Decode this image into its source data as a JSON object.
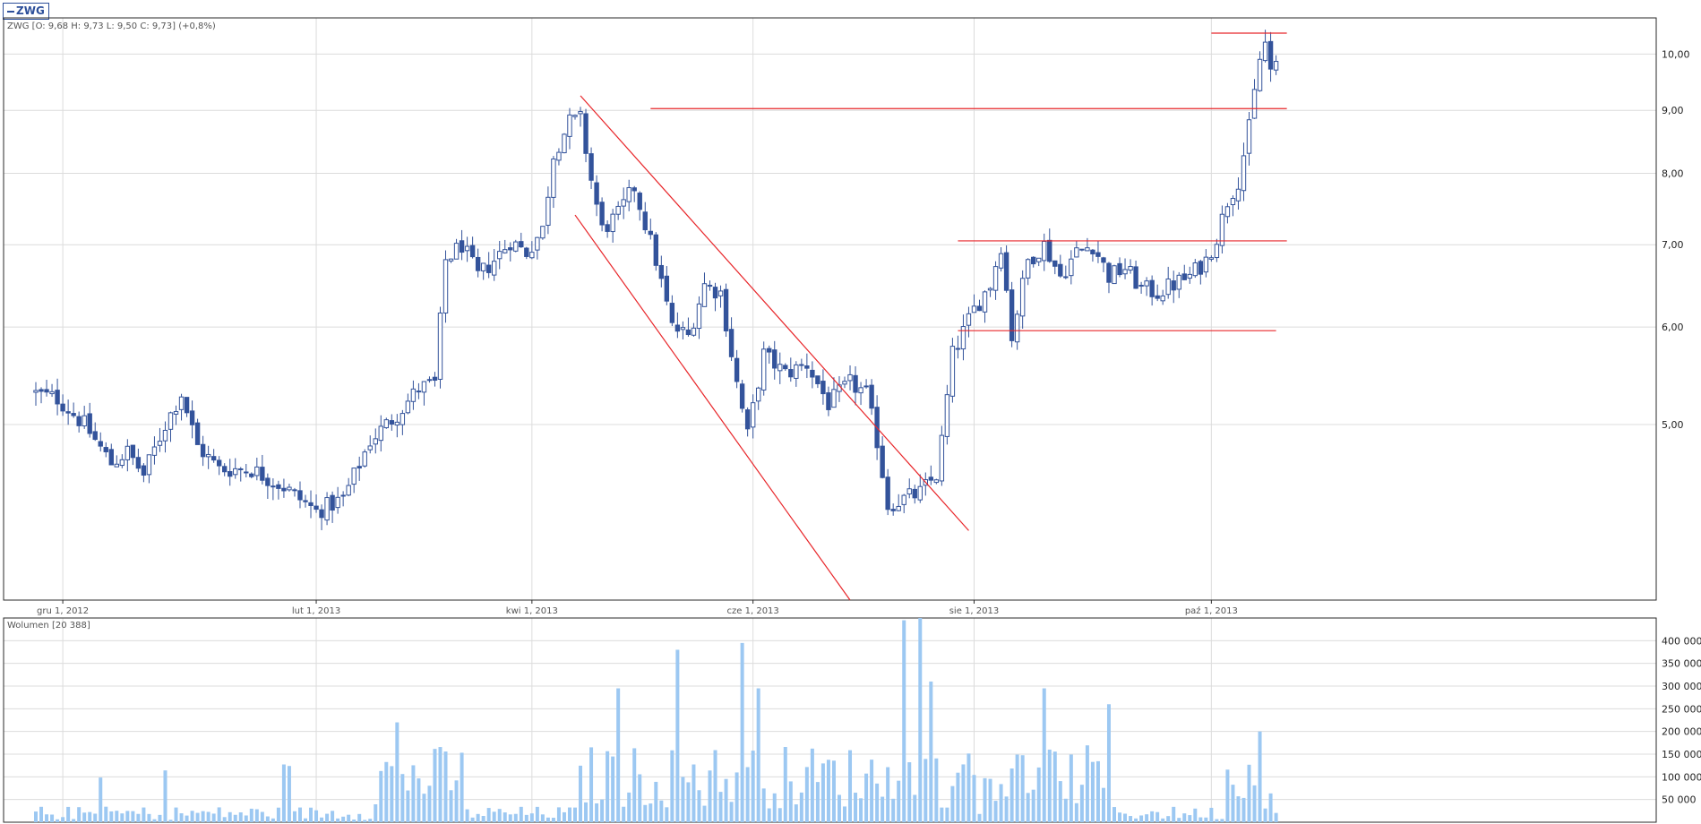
{
  "ticker_tag": "ZWG",
  "price_panel": {
    "legend": "ZWG [O: 9,68  H: 9,73  L: 9,50  C: 9,73] (+0,8%)"
  },
  "volume_panel": {
    "legend": "Wolumen [20 388]"
  },
  "colors": {
    "down_candle": "#33539b",
    "up_candle_border": "#33539b",
    "trend_lines": "#e8262a",
    "volume_bars": "#9cc8f2",
    "grid": "#dcdcdc"
  },
  "chart_data": [
    {
      "type": "candlestick",
      "title": "",
      "series_name": "ZWG",
      "x_ticks": [
        "gru 1, 2012",
        "lut 1, 2013",
        "kwi 1, 2013",
        "cze 1, 2013",
        "sie 1, 2013",
        "paź 1, 2013"
      ],
      "y_scale": "log",
      "y_ticks": [
        "5,00",
        "6,00",
        "7,00",
        "8,00",
        "9,00",
        "10,00"
      ],
      "ylim": [
        3.6,
        10.7
      ],
      "grid": true,
      "legend_position": "top-left",
      "close_path": [
        {
          "bar": 0,
          "close": 5.3
        },
        {
          "bar": 4,
          "close": 5.25
        },
        {
          "bar": 9,
          "close": 5.0
        },
        {
          "bar": 14,
          "close": 4.65
        },
        {
          "bar": 17,
          "close": 4.75
        },
        {
          "bar": 20,
          "close": 4.55
        },
        {
          "bar": 24,
          "close": 5.0
        },
        {
          "bar": 27,
          "close": 5.3
        },
        {
          "bar": 30,
          "close": 4.8
        },
        {
          "bar": 34,
          "close": 4.6
        },
        {
          "bar": 40,
          "close": 4.6
        },
        {
          "bar": 46,
          "close": 4.45
        },
        {
          "bar": 52,
          "close": 4.25
        },
        {
          "bar": 57,
          "close": 4.35
        },
        {
          "bar": 62,
          "close": 4.85
        },
        {
          "bar": 67,
          "close": 5.1
        },
        {
          "bar": 71,
          "close": 5.35
        },
        {
          "bar": 74,
          "close": 5.4
        },
        {
          "bar": 76,
          "close": 6.8
        },
        {
          "bar": 79,
          "close": 7.0
        },
        {
          "bar": 82,
          "close": 6.6
        },
        {
          "bar": 85,
          "close": 6.8
        },
        {
          "bar": 88,
          "close": 7.05
        },
        {
          "bar": 91,
          "close": 6.9
        },
        {
          "bar": 94,
          "close": 7.2
        },
        {
          "bar": 96,
          "close": 8.3
        },
        {
          "bar": 99,
          "close": 8.8
        },
        {
          "bar": 101,
          "close": 8.85
        },
        {
          "bar": 103,
          "close": 7.9
        },
        {
          "bar": 105,
          "close": 7.2
        },
        {
          "bar": 108,
          "close": 7.4
        },
        {
          "bar": 111,
          "close": 7.8
        },
        {
          "bar": 115,
          "close": 6.8
        },
        {
          "bar": 118,
          "close": 6.0
        },
        {
          "bar": 121,
          "close": 5.9
        },
        {
          "bar": 124,
          "close": 6.5
        },
        {
          "bar": 127,
          "close": 6.4
        },
        {
          "bar": 130,
          "close": 5.4
        },
        {
          "bar": 132,
          "close": 4.9
        },
        {
          "bar": 135,
          "close": 5.7
        },
        {
          "bar": 139,
          "close": 5.5
        },
        {
          "bar": 143,
          "close": 5.6
        },
        {
          "bar": 147,
          "close": 5.2
        },
        {
          "bar": 151,
          "close": 5.4
        },
        {
          "bar": 154,
          "close": 5.3
        },
        {
          "bar": 156,
          "close": 4.85
        },
        {
          "bar": 158,
          "close": 4.3
        },
        {
          "bar": 161,
          "close": 4.35
        },
        {
          "bar": 164,
          "close": 4.4
        },
        {
          "bar": 167,
          "close": 4.55
        },
        {
          "bar": 168,
          "close": 4.85
        },
        {
          "bar": 170,
          "close": 5.7
        },
        {
          "bar": 174,
          "close": 6.2
        },
        {
          "bar": 177,
          "close": 6.5
        },
        {
          "bar": 179,
          "close": 7.0
        },
        {
          "bar": 181,
          "close": 5.9
        },
        {
          "bar": 184,
          "close": 6.8
        },
        {
          "bar": 187,
          "close": 7.0
        },
        {
          "bar": 190,
          "close": 6.6
        },
        {
          "bar": 193,
          "close": 6.9
        },
        {
          "bar": 196,
          "close": 7.0
        },
        {
          "bar": 199,
          "close": 6.6
        },
        {
          "bar": 202,
          "close": 6.7
        },
        {
          "bar": 205,
          "close": 6.45
        },
        {
          "bar": 208,
          "close": 6.4
        },
        {
          "bar": 211,
          "close": 6.5
        },
        {
          "bar": 214,
          "close": 6.6
        },
        {
          "bar": 217,
          "close": 6.8
        },
        {
          "bar": 219,
          "close": 7.1
        },
        {
          "bar": 221,
          "close": 7.6
        },
        {
          "bar": 223,
          "close": 7.9
        },
        {
          "bar": 225,
          "close": 8.7
        },
        {
          "bar": 227,
          "close": 9.9
        },
        {
          "bar": 228,
          "close": 10.2
        },
        {
          "bar": 229,
          "close": 9.7
        },
        {
          "bar": 230,
          "close": 9.73
        }
      ],
      "annotations": [
        {
          "type": "horizontal_line",
          "value": 9.03
        },
        {
          "type": "horizontal_line",
          "value": 10.4
        },
        {
          "type": "horizontal_line",
          "value": 7.05
        },
        {
          "type": "horizontal_line",
          "value": 5.96
        },
        {
          "type": "trend_line",
          "from": {
            "bar": 101,
            "price": 9.25
          },
          "to": {
            "bar": 173,
            "price": 4.1
          }
        },
        {
          "type": "trend_line",
          "from": {
            "bar": 100,
            "price": 7.4
          },
          "to": {
            "bar": 151,
            "price": 3.55
          }
        }
      ]
    },
    {
      "type": "bar",
      "title": "",
      "series_name": "Wolumen",
      "y_ticks": [
        "50 000",
        "100 000",
        "150 000",
        "200 000",
        "250 000",
        "300 000",
        "350 000",
        "400 000"
      ],
      "ylim": [
        0,
        450000
      ],
      "grid": true,
      "last_value": 20388,
      "notable_values": [
        {
          "bar": 119,
          "value": 380000
        },
        {
          "bar": 131,
          "value": 395000
        },
        {
          "bar": 161,
          "value": 445000
        },
        {
          "bar": 164,
          "value": 450000
        },
        {
          "bar": 166,
          "value": 310000
        },
        {
          "bar": 108,
          "value": 295000
        },
        {
          "bar": 134,
          "value": 295000
        },
        {
          "bar": 187,
          "value": 295000
        },
        {
          "bar": 199,
          "value": 260000
        },
        {
          "bar": 67,
          "value": 220000
        },
        {
          "bar": 227,
          "value": 200000
        }
      ]
    }
  ]
}
